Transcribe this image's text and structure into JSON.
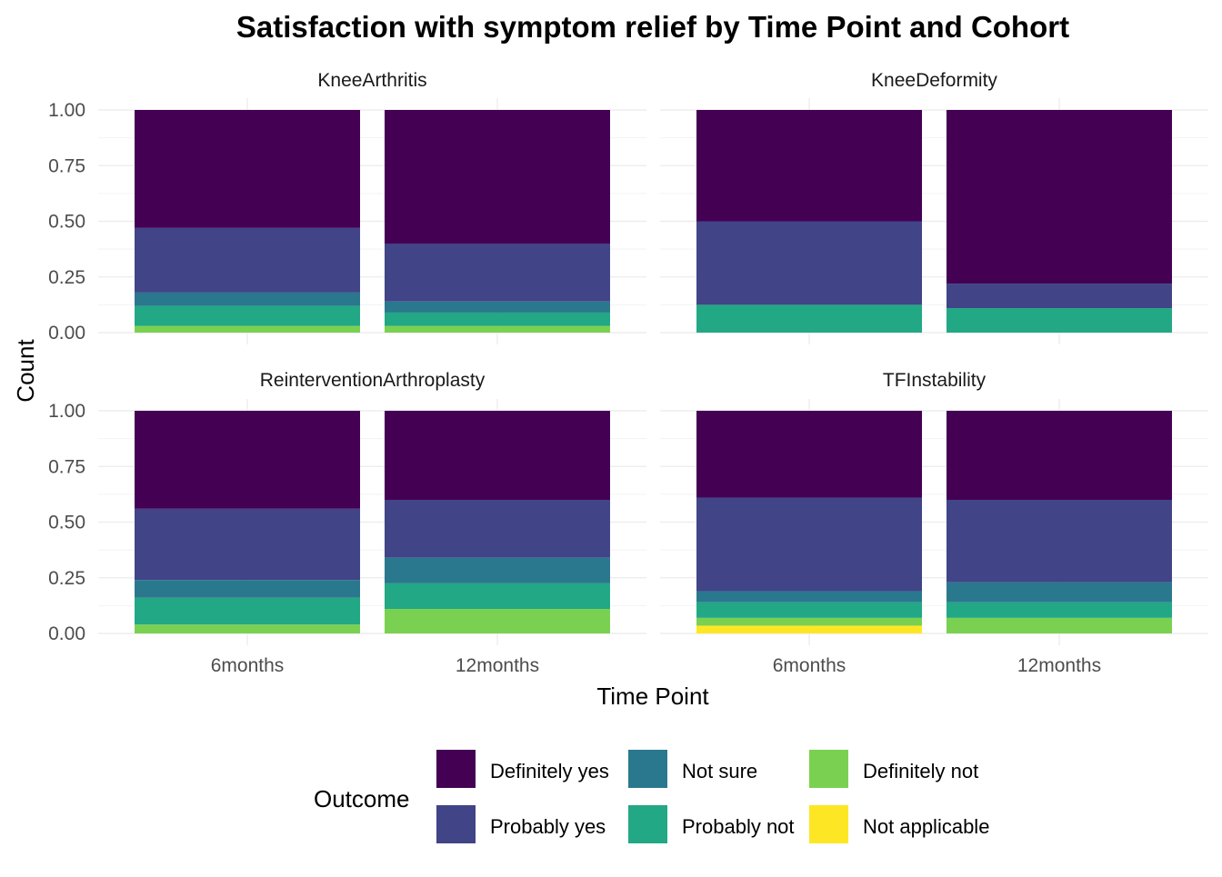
{
  "chart_data": {
    "type": "bar",
    "stacked": true,
    "title": "Satisfaction with symptom relief by Time Point and Cohort",
    "xlabel": "Time Point",
    "ylabel": "Count",
    "ylim": [
      0,
      1
    ],
    "yticks": [
      "0.00",
      "0.25",
      "0.50",
      "0.75",
      "1.00"
    ],
    "grid": true,
    "legend": {
      "title": "Outcome",
      "placement": "bottom",
      "entries": [
        {
          "name": "Definitely yes",
          "color": "#440154"
        },
        {
          "name": "Probably yes",
          "color": "#414487"
        },
        {
          "name": "Not sure",
          "color": "#2A788E"
        },
        {
          "name": "Probably not",
          "color": "#22A884"
        },
        {
          "name": "Definitely not",
          "color": "#7AD151"
        },
        {
          "name": "Not applicable",
          "color": "#FDE725"
        }
      ]
    },
    "categories": [
      "6months",
      "12months"
    ],
    "stack_order": [
      "Not applicable",
      "Definitely not",
      "Probably not",
      "Not sure",
      "Probably yes",
      "Definitely yes"
    ],
    "facets": [
      {
        "name": "KneeArthritis",
        "bars": [
          {
            "category": "6months",
            "values": {
              "Not applicable": 0,
              "Definitely not": 0.03,
              "Probably not": 0.09,
              "Not sure": 0.06,
              "Probably yes": 0.29,
              "Definitely yes": 0.53
            }
          },
          {
            "category": "12months",
            "values": {
              "Not applicable": 0,
              "Definitely not": 0.03,
              "Probably not": 0.06,
              "Not sure": 0.05,
              "Probably yes": 0.26,
              "Definitely yes": 0.6
            }
          }
        ]
      },
      {
        "name": "KneeDeformity",
        "bars": [
          {
            "category": "6months",
            "values": {
              "Not applicable": 0,
              "Definitely not": 0,
              "Probably not": 0.125,
              "Not sure": 0,
              "Probably yes": 0.375,
              "Definitely yes": 0.5
            }
          },
          {
            "category": "12months",
            "values": {
              "Not applicable": 0,
              "Definitely not": 0,
              "Probably not": 0.11,
              "Not sure": 0,
              "Probably yes": 0.11,
              "Definitely yes": 0.78
            }
          }
        ]
      },
      {
        "name": "ReinterventionArthroplasty",
        "bars": [
          {
            "category": "6months",
            "values": {
              "Not applicable": 0,
              "Definitely not": 0.04,
              "Probably not": 0.12,
              "Not sure": 0.08,
              "Probably yes": 0.32,
              "Definitely yes": 0.44
            }
          },
          {
            "category": "12months",
            "values": {
              "Not applicable": 0,
              "Definitely not": 0.11,
              "Probably not": 0.115,
              "Not sure": 0.115,
              "Probably yes": 0.26,
              "Definitely yes": 0.4
            }
          }
        ]
      },
      {
        "name": "TFInstability",
        "bars": [
          {
            "category": "6months",
            "values": {
              "Not applicable": 0.035,
              "Definitely not": 0.035,
              "Probably not": 0.07,
              "Not sure": 0.05,
              "Probably yes": 0.42,
              "Definitely yes": 0.39
            }
          },
          {
            "category": "12months",
            "values": {
              "Not applicable": 0,
              "Definitely not": 0.07,
              "Probably not": 0.07,
              "Not sure": 0.09,
              "Probably yes": 0.37,
              "Definitely yes": 0.4
            }
          }
        ]
      }
    ]
  }
}
